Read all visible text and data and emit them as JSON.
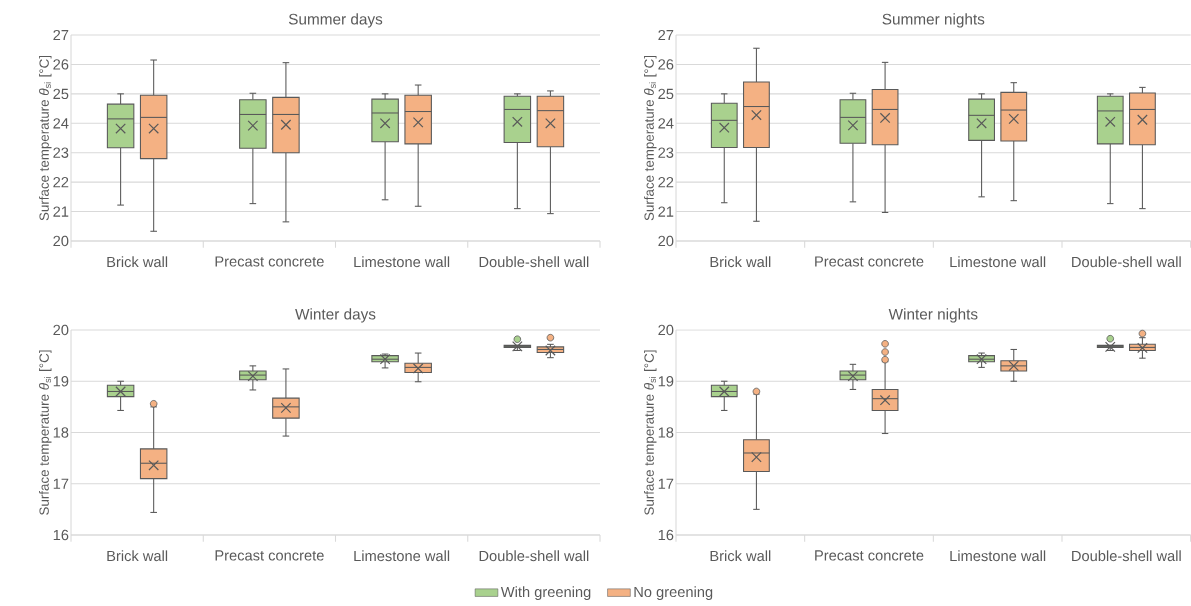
{
  "chart_data": [
    {
      "type": "box",
      "title": "Summer days",
      "ylabel": "Surface temperature *θ*$_{si}$ [°C]",
      "categories": [
        "Brick wall",
        "Precast concrete",
        "Limestone wall",
        "Double-shell wall"
      ],
      "ylim": [
        20,
        27
      ],
      "yticks": [
        20,
        21,
        22,
        23,
        24,
        25,
        26,
        27
      ],
      "grid": "y",
      "series": [
        {
          "color": "#a9d18e",
          "boxes": [
            {
              "low": 21.22,
              "q1": 23.17,
              "median": 24.15,
              "q3": 24.65,
              "high": 25.0,
              "mean": 23.82
            },
            {
              "low": 21.27,
              "q1": 23.15,
              "median": 24.3,
              "q3": 24.8,
              "high": 25.02,
              "mean": 23.92
            },
            {
              "low": 21.4,
              "q1": 23.37,
              "median": 24.35,
              "q3": 24.82,
              "high": 25.0,
              "mean": 24.0
            },
            {
              "low": 21.1,
              "q1": 23.35,
              "median": 24.47,
              "q3": 24.92,
              "high": 25.0,
              "mean": 24.05
            }
          ]
        },
        {
          "color": "#f4b183",
          "boxes": [
            {
              "low": 20.33,
              "q1": 22.8,
              "median": 24.2,
              "q3": 24.95,
              "high": 26.15,
              "mean": 23.82
            },
            {
              "low": 20.65,
              "q1": 23.0,
              "median": 24.3,
              "q3": 24.88,
              "high": 26.06,
              "mean": 23.95
            },
            {
              "low": 21.18,
              "q1": 23.3,
              "median": 24.4,
              "q3": 24.95,
              "high": 25.3,
              "mean": 24.03
            },
            {
              "low": 20.93,
              "q1": 23.2,
              "median": 24.43,
              "q3": 24.92,
              "high": 25.1,
              "mean": 24.0
            }
          ]
        }
      ]
    },
    {
      "type": "box",
      "title": "Summer nights",
      "ylabel": "Surface temperature *θ*$_{si}$ [°C]",
      "categories": [
        "Brick wall",
        "Precast concrete",
        "Limestone wall",
        "Double-shell wall"
      ],
      "ylim": [
        20,
        27
      ],
      "yticks": [
        20,
        21,
        22,
        23,
        24,
        25,
        26,
        27
      ],
      "grid": "y",
      "series": [
        {
          "color": "#a9d18e",
          "boxes": [
            {
              "low": 21.3,
              "q1": 23.18,
              "median": 24.1,
              "q3": 24.68,
              "high": 25.0,
              "mean": 23.85
            },
            {
              "low": 21.33,
              "q1": 23.32,
              "median": 24.2,
              "q3": 24.8,
              "high": 25.02,
              "mean": 23.93
            },
            {
              "low": 21.5,
              "q1": 23.42,
              "median": 24.27,
              "q3": 24.82,
              "high": 25.0,
              "mean": 24.0
            },
            {
              "low": 21.27,
              "q1": 23.3,
              "median": 24.42,
              "q3": 24.92,
              "high": 25.0,
              "mean": 24.05
            }
          ]
        },
        {
          "color": "#f4b183",
          "boxes": [
            {
              "low": 20.67,
              "q1": 23.18,
              "median": 24.57,
              "q3": 25.4,
              "high": 26.55,
              "mean": 24.28
            },
            {
              "low": 20.97,
              "q1": 23.27,
              "median": 24.47,
              "q3": 25.15,
              "high": 26.07,
              "mean": 24.18
            },
            {
              "low": 21.37,
              "q1": 23.4,
              "median": 24.45,
              "q3": 25.05,
              "high": 25.38,
              "mean": 24.15
            },
            {
              "low": 21.1,
              "q1": 23.27,
              "median": 24.47,
              "q3": 25.03,
              "high": 25.22,
              "mean": 24.12
            }
          ]
        }
      ]
    },
    {
      "type": "box",
      "title": "Winter days",
      "ylabel": "Surface temperature *θ*$_{si}$ [°C]",
      "categories": [
        "Brick wall",
        "Precast concrete",
        "Limestone wall",
        "Double-shell wall"
      ],
      "ylim": [
        16,
        20
      ],
      "yticks": [
        16,
        17,
        18,
        19,
        20
      ],
      "grid": "y",
      "series": [
        {
          "color": "#a9d18e",
          "boxes": [
            {
              "low": 18.43,
              "q1": 18.7,
              "median": 18.8,
              "q3": 18.92,
              "high": 19.0,
              "mean": 18.8
            },
            {
              "low": 18.83,
              "q1": 19.03,
              "median": 19.12,
              "q3": 19.2,
              "high": 19.3,
              "mean": 19.1
            },
            {
              "low": 19.26,
              "q1": 19.38,
              "median": 19.43,
              "q3": 19.5,
              "high": 19.53,
              "mean": 19.43
            },
            {
              "low": 19.6,
              "q1": 19.66,
              "median": 19.68,
              "q3": 19.7,
              "high": 19.7,
              "mean": 19.68,
              "outliers": [
                19.82
              ]
            }
          ]
        },
        {
          "color": "#f4b183",
          "boxes": [
            {
              "low": 16.44,
              "q1": 17.1,
              "median": 17.4,
              "q3": 17.68,
              "high": 18.5,
              "mean": 17.36,
              "outliers": [
                18.56
              ]
            },
            {
              "low": 17.93,
              "q1": 18.28,
              "median": 18.5,
              "q3": 18.67,
              "high": 19.24,
              "mean": 18.48
            },
            {
              "low": 18.99,
              "q1": 19.17,
              "median": 19.27,
              "q3": 19.35,
              "high": 19.55,
              "mean": 19.25
            },
            {
              "low": 19.46,
              "q1": 19.56,
              "median": 19.62,
              "q3": 19.67,
              "high": 19.72,
              "mean": 19.6,
              "outliers": [
                19.85
              ]
            }
          ]
        }
      ]
    },
    {
      "type": "box",
      "title": "Winter nights",
      "ylabel": "Surface temperature *θ*$_{si}$ [°C]",
      "categories": [
        "Brick wall",
        "Precast concrete",
        "Limestone wall",
        "Double-shell wall"
      ],
      "ylim": [
        16,
        20
      ],
      "yticks": [
        16,
        17,
        18,
        19,
        20
      ],
      "grid": "y",
      "legend": "bottom",
      "series": [
        {
          "name": "With greening",
          "color": "#a9d18e",
          "boxes": [
            {
              "low": 18.43,
              "q1": 18.7,
              "median": 18.8,
              "q3": 18.92,
              "high": 19.0,
              "mean": 18.8
            },
            {
              "low": 18.84,
              "q1": 19.03,
              "median": 19.12,
              "q3": 19.2,
              "high": 19.33,
              "mean": 19.1
            },
            {
              "low": 19.27,
              "q1": 19.38,
              "median": 19.43,
              "q3": 19.5,
              "high": 19.55,
              "mean": 19.43
            },
            {
              "low": 19.6,
              "q1": 19.66,
              "median": 19.68,
              "q3": 19.7,
              "high": 19.7,
              "mean": 19.67,
              "outliers": [
                19.83
              ]
            }
          ]
        },
        {
          "name": "No greening",
          "color": "#f4b183",
          "boxes": [
            {
              "low": 16.5,
              "q1": 17.24,
              "median": 17.6,
              "q3": 17.86,
              "high": 18.75,
              "mean": 17.52,
              "outliers": [
                18.8
              ]
            },
            {
              "low": 17.98,
              "q1": 18.43,
              "median": 18.66,
              "q3": 18.84,
              "high": 19.38,
              "mean": 18.63,
              "outliers": [
                19.42,
                19.57,
                19.73
              ]
            },
            {
              "low": 19.0,
              "q1": 19.2,
              "median": 19.3,
              "q3": 19.4,
              "high": 19.62,
              "mean": 19.3
            },
            {
              "low": 19.45,
              "q1": 19.6,
              "median": 19.66,
              "q3": 19.72,
              "high": 19.85,
              "mean": 19.65,
              "outliers": [
                19.93
              ]
            }
          ]
        }
      ]
    }
  ]
}
